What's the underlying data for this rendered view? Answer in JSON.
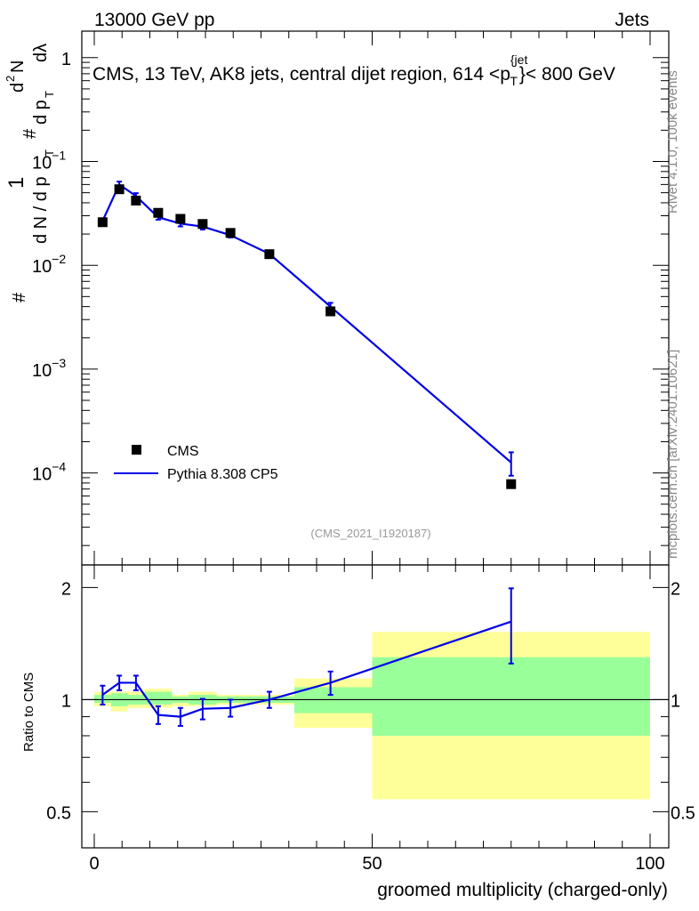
{
  "header": {
    "left": "13000 GeV pp",
    "right": "Jets"
  },
  "title_parts": {
    "pre": "CMS, 13 TeV, AK8 jets, central dijet region, 614 <p",
    "sup": "{jet",
    "sub": "T",
    "post": "}< 800 GeV"
  },
  "side_labels": {
    "rivet": "Rivet 4.1.0,  100k events",
    "mcplots": "mcplots.cern.ch [arXiv:2401.10621]"
  },
  "watermark": "(CMS_2021_I1920187)",
  "ylabel_main": {
    "hash1": "#",
    "one": "1",
    "dn": "d N / d p",
    "t1": "T",
    "hash2": "#",
    "d2n": "d",
    "two": "2",
    "N": "N",
    "dp": "d p",
    "t2": "T",
    "dl": "dλ"
  },
  "ylabel_ratio": "Ratio to CMS",
  "xlabel": "groomed multiplicity (charged-only)",
  "legend": {
    "data_label": "CMS",
    "mc_label": "Pythia 8.308 CP5"
  },
  "colors": {
    "mc_line": "#0000e6",
    "band_inner": "#99ff99",
    "band_outer": "#ffff99",
    "data_marker": "#000000"
  },
  "chart_data": {
    "type": "scatter",
    "x_ticks": [
      "0",
      "50",
      "100"
    ],
    "main": {
      "yscale": "log",
      "ylim": [
        1.3e-05,
        1.8
      ],
      "y_ticks": [
        {
          "base": "10",
          "exp": "−4"
        },
        {
          "base": "10",
          "exp": "−3"
        },
        {
          "base": "10",
          "exp": "−2"
        },
        {
          "base": "10",
          "exp": "−1"
        },
        {
          "base": "1",
          "exp": ""
        }
      ],
      "data_series": {
        "name": "CMS",
        "x": [
          1.5,
          4.5,
          7.5,
          11.5,
          15.5,
          19.5,
          24.5,
          31.5,
          42.5,
          75
        ],
        "y": [
          0.026,
          0.054,
          0.042,
          0.032,
          0.028,
          0.025,
          0.0205,
          0.0128,
          0.0036,
          7.8e-05
        ]
      },
      "mc_series": {
        "name": "Pythia 8.308 CP5",
        "x": [
          1.5,
          4.5,
          7.5,
          11.5,
          15.5,
          19.5,
          24.5,
          31.5,
          42.5,
          75
        ],
        "y": [
          0.0268,
          0.06,
          0.0465,
          0.029,
          0.0252,
          0.0236,
          0.0195,
          0.0129,
          0.004,
          0.000126
        ],
        "yerr": [
          0.0015,
          0.004,
          0.003,
          0.0015,
          0.0015,
          0.0015,
          0.001,
          0.0006,
          0.00035,
          3.2e-05
        ]
      }
    },
    "ratio": {
      "ylim": [
        0.4,
        2.3
      ],
      "y_ticks": [
        "0.5",
        "1",
        "2"
      ],
      "reference": 1.0,
      "x": [
        1.5,
        4.5,
        7.5,
        11.5,
        15.5,
        19.5,
        24.5,
        31.5,
        42.5,
        75
      ],
      "y": [
        1.03,
        1.11,
        1.11,
        0.91,
        0.9,
        0.945,
        0.95,
        1.0,
        1.11,
        1.62
      ],
      "yerr": [
        0.06,
        0.05,
        0.05,
        0.05,
        0.05,
        0.06,
        0.05,
        0.05,
        0.08,
        0.37
      ],
      "bands": [
        {
          "x0": 0,
          "x1": 3,
          "inner": [
            0.98,
            1.03
          ],
          "outer": [
            0.96,
            1.05
          ]
        },
        {
          "x0": 3,
          "x1": 6,
          "inner": [
            0.96,
            1.04
          ],
          "outer": [
            0.93,
            1.05
          ]
        },
        {
          "x0": 6,
          "x1": 9,
          "inner": [
            0.97,
            1.03
          ],
          "outer": [
            0.95,
            1.05
          ]
        },
        {
          "x0": 9,
          "x1": 14,
          "inner": [
            0.97,
            1.05
          ],
          "outer": [
            0.95,
            1.07
          ]
        },
        {
          "x0": 14,
          "x1": 17,
          "inner": [
            0.98,
            1.02
          ],
          "outer": [
            0.96,
            1.03
          ]
        },
        {
          "x0": 17,
          "x1": 22,
          "inner": [
            0.97,
            1.03
          ],
          "outer": [
            0.96,
            1.05
          ]
        },
        {
          "x0": 22,
          "x1": 36,
          "inner": [
            0.98,
            1.02
          ],
          "outer": [
            0.97,
            1.03
          ]
        },
        {
          "x0": 36,
          "x1": 50,
          "inner": [
            0.92,
            1.08
          ],
          "outer": [
            0.84,
            1.14
          ]
        },
        {
          "x0": 50,
          "x1": 100,
          "inner": [
            0.8,
            1.3
          ],
          "outer": [
            0.54,
            1.52
          ]
        }
      ]
    }
  }
}
